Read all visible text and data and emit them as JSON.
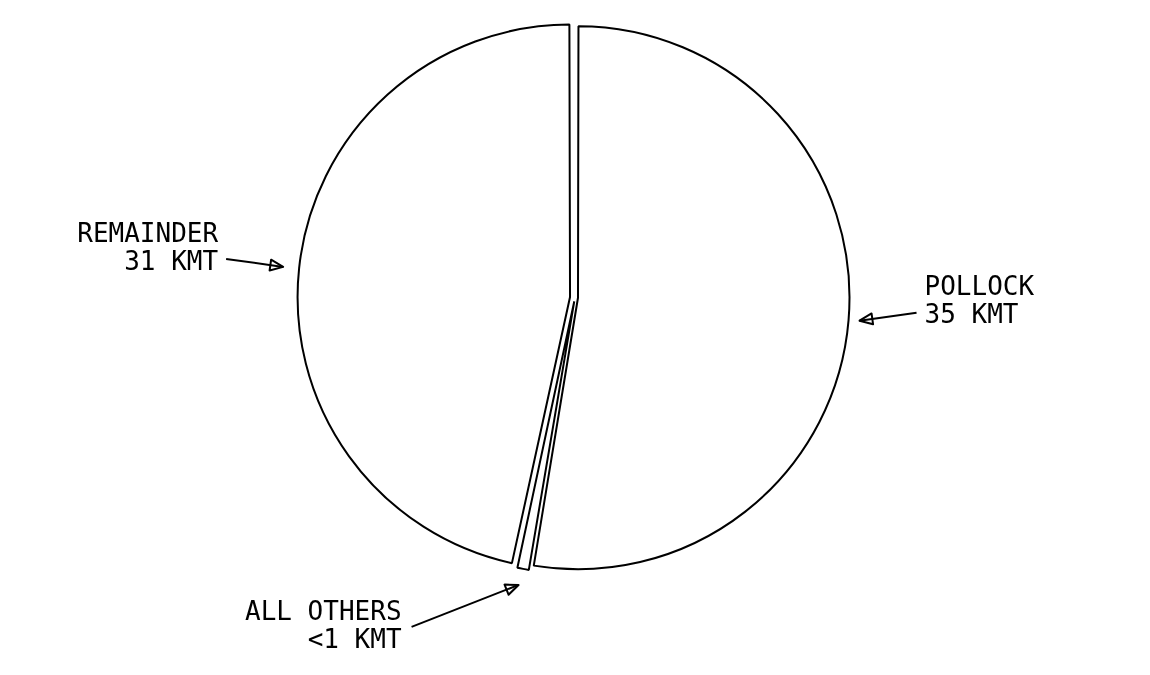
{
  "chart_data": {
    "type": "pie",
    "categories": [
      "POLLOCK",
      "ALL OTHERS",
      "REMAINDER"
    ],
    "values": [
      35,
      0.5,
      31
    ],
    "value_labels": [
      "35 KMT",
      "<1 KMT",
      "31 KMT"
    ],
    "colors": [
      "#ffffff",
      "#ffffff",
      "#ffffff"
    ],
    "legend": false
  }
}
